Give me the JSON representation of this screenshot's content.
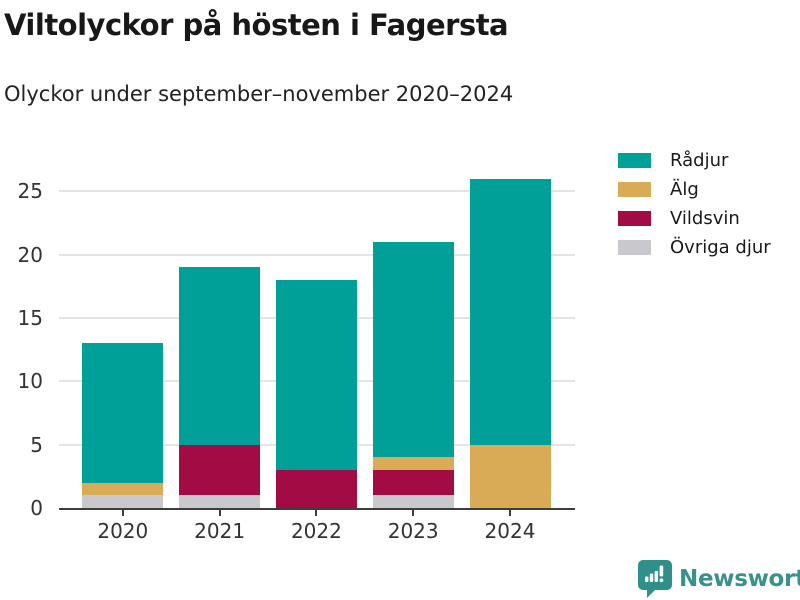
{
  "header": {
    "title": "Viltolyckor på hösten i Fagersta",
    "subtitle": "Olyckor under september–november 2020–2024"
  },
  "chart_data": {
    "type": "bar",
    "stacked": true,
    "title": "Viltolyckor på hösten i Fagersta",
    "subtitle": "Olyckor under september–november 2020–2024",
    "categories": [
      "2020",
      "2021",
      "2022",
      "2023",
      "2024"
    ],
    "series": [
      {
        "name": "Rådjur",
        "color": "#00a099",
        "values": [
          11,
          14,
          15,
          17,
          21
        ]
      },
      {
        "name": "Älg",
        "color": "#d9ab57",
        "values": [
          1,
          0,
          0,
          1,
          5
        ]
      },
      {
        "name": "Vildsvin",
        "color": "#a20b44",
        "values": [
          0,
          4,
          3,
          2,
          0
        ]
      },
      {
        "name": "Övriga djur",
        "color": "#c9c8cd",
        "values": [
          1,
          1,
          0,
          1,
          0
        ]
      }
    ],
    "totals": [
      13,
      19,
      18,
      21,
      26
    ],
    "stack_order_bottom_to_top": [
      "Övriga djur",
      "Vildsvin",
      "Älg",
      "Rådjur"
    ],
    "yticks": [
      0,
      5,
      10,
      15,
      20,
      25
    ],
    "ylim": [
      0,
      27
    ],
    "xlabel": "",
    "ylabel": "",
    "grid": "horizontal",
    "legend_position": "top-right"
  },
  "footer": {
    "brand": "Newsworthy",
    "brand_color": "#39918c",
    "icon_color": "#2f9089"
  }
}
